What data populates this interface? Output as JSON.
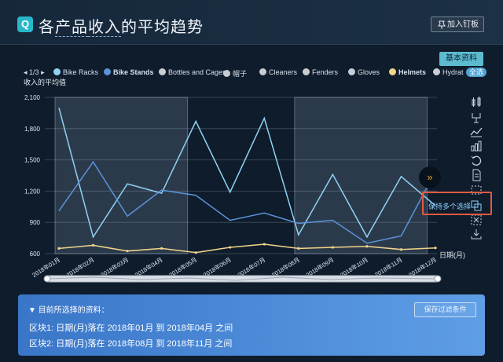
{
  "header": {
    "logo_letter": "Q",
    "title_pre": "各",
    "title_u1": "产品",
    "title_u2": "收入",
    "title_post": "的平均趋势",
    "pin_label": "加入钉板"
  },
  "basic_info_label": "基本资料",
  "legend": {
    "page": "1/3",
    "all_label": "全选",
    "items": [
      {
        "name": "Bike Racks",
        "color": "#8fd2f4",
        "bold": false
      },
      {
        "name": "Bike Stands",
        "color": "#5b93d9",
        "bold": true
      },
      {
        "name": "Bottles and Cages",
        "color": "#c8cdd3",
        "bold": false
      },
      {
        "name": "帽子",
        "color": "#c8cdd3",
        "bold": false
      },
      {
        "name": "Cleaners",
        "color": "#c8cdd3",
        "bold": false
      },
      {
        "name": "Fenders",
        "color": "#c8cdd3",
        "bold": false
      },
      {
        "name": "Gloves",
        "color": "#c8cdd3",
        "bold": false
      },
      {
        "name": "Helmets",
        "color": "#f2d58a",
        "bold": true
      },
      {
        "name": "Hydrat",
        "color": "#c8cdd3",
        "bold": false
      }
    ]
  },
  "toolbox_tooltip": "保持多个选择",
  "chart_data": {
    "type": "line",
    "ylabel": "收入的平均值",
    "xlabel": "日期(月)",
    "ylim": [
      600,
      2100
    ],
    "yticks": [
      "2,100",
      "1,800",
      "1,500",
      "1,200",
      "900",
      "600"
    ],
    "categories": [
      "2018年01月",
      "2018年02月",
      "2018年03月",
      "2018年04月",
      "2018年05月",
      "2018年06月",
      "2018年07月",
      "2018年08月",
      "2018年09月",
      "2018年10月",
      "2018年11月",
      "2018年12月"
    ],
    "series": [
      {
        "name": "Bike Racks",
        "color": "#8fd2f4",
        "values": [
          2000,
          760,
          1270,
          1180,
          1870,
          1190,
          1900,
          780,
          1360,
          760,
          1340,
          1060
        ]
      },
      {
        "name": "Bike Stands",
        "color": "#5b93d9",
        "values": [
          1010,
          1480,
          960,
          1210,
          1160,
          920,
          990,
          890,
          920,
          700,
          770,
          1390
        ]
      },
      {
        "name": "Helmets",
        "color": "#f2d58a",
        "values": [
          650,
          680,
          625,
          650,
          610,
          660,
          690,
          650,
          660,
          670,
          640,
          655
        ]
      }
    ],
    "brush_areas": [
      [
        0,
        3
      ],
      [
        7,
        10
      ]
    ],
    "grid": true
  },
  "selection": {
    "title": "目前所选择的资料：",
    "save_label": "保存过滤条件",
    "lines": [
      "区块1: 日期(月)落在 2018年01月 到 2018年04月 之间",
      "区块2: 日期(月)落在 2018年08月 到 2018年11月 之间"
    ]
  }
}
